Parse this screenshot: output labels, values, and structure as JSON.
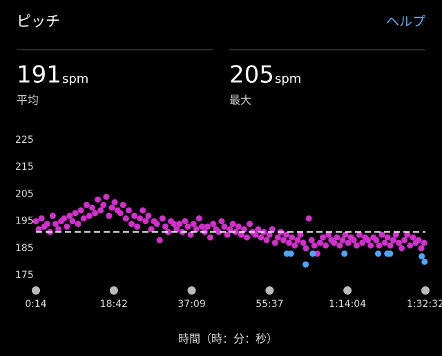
{
  "header": {
    "title": "ピッチ",
    "help": "ヘルプ"
  },
  "stats": [
    {
      "value": 191,
      "unit": "spm",
      "label": "平均"
    },
    {
      "value": 205,
      "unit": "spm",
      "label": "最大"
    }
  ],
  "chart_data": {
    "type": "scatter",
    "x_label": "時間（時：分：秒）",
    "xlim": [
      14,
      5552
    ],
    "xticks": [
      {
        "value": 14,
        "label": "0:14"
      },
      {
        "value": 1122,
        "label": "18:42"
      },
      {
        "value": 2229,
        "label": "37:09"
      },
      {
        "value": 3337,
        "label": "55:37"
      },
      {
        "value": 4444,
        "label": "1:14:04"
      },
      {
        "value": 5552,
        "label": "1:32:32"
      }
    ],
    "ylim": [
      175,
      225
    ],
    "yticks": [
      175,
      185,
      195,
      205,
      215,
      225
    ],
    "series": [
      {
        "color": "#d22fcc",
        "x": [
          14,
          54,
          94,
          134,
          174,
          214,
          254,
          294,
          334,
          374,
          414,
          454,
          494,
          534,
          574,
          614,
          654,
          694,
          734,
          774,
          814,
          854,
          894,
          934,
          974,
          1014,
          1054,
          1094,
          1134,
          1174,
          1214,
          1254,
          1294,
          1334,
          1374,
          1414,
          1454,
          1494,
          1534,
          1574,
          1614,
          1654,
          1694,
          1734,
          1774,
          1814,
          1854,
          1894,
          1934,
          1974,
          2014,
          2054,
          2094,
          2134,
          2174,
          2214,
          2254,
          2294,
          2334,
          2374,
          2414,
          2454,
          2494,
          2534,
          2574,
          2614,
          2654,
          2694,
          2734,
          2774,
          2814,
          2854,
          2894,
          2934,
          2974,
          3014,
          3054,
          3094,
          3134,
          3174,
          3214,
          3254,
          3294,
          3334,
          3374,
          3414,
          3454,
          3494,
          3534,
          3574,
          3614,
          3654,
          3694,
          3734,
          3774,
          3814,
          3854,
          3894,
          3934,
          3974,
          4014,
          4054,
          4094,
          4134,
          4174,
          4214,
          4254,
          4294,
          4334,
          4374,
          4414,
          4454,
          4494,
          4534,
          4574,
          4614,
          4654,
          4694,
          4734,
          4774,
          4814,
          4854,
          4894,
          4934,
          4974,
          5014,
          5054,
          5094,
          5134,
          5174,
          5214,
          5254,
          5294,
          5334,
          5374,
          5414,
          5454,
          5494,
          5534
        ],
        "values": [
          195,
          192,
          196,
          193,
          194,
          191,
          197,
          194,
          192,
          195,
          196,
          193,
          197,
          195,
          198,
          194,
          199,
          196,
          201,
          197,
          200,
          198,
          203,
          199,
          201,
          204,
          197,
          200,
          202,
          199,
          198,
          201,
          196,
          199,
          194,
          197,
          193,
          196,
          199,
          195,
          197,
          192,
          195,
          194,
          188,
          196,
          193,
          191,
          195,
          194,
          192,
          194,
          191,
          195,
          193,
          190,
          194,
          192,
          196,
          193,
          191,
          193,
          189,
          194,
          192,
          191,
          195,
          193,
          190,
          192,
          194,
          191,
          193,
          190,
          192,
          189,
          194,
          191,
          190,
          192,
          189,
          191,
          188,
          190,
          192,
          187,
          189,
          191,
          188,
          190,
          187,
          189,
          186,
          188,
          190,
          187,
          185,
          196,
          188,
          186,
          183,
          187,
          189,
          186,
          190,
          188,
          187,
          189,
          186,
          188,
          190,
          187,
          189,
          188,
          186,
          190,
          187,
          189,
          188,
          186,
          189,
          188,
          186,
          190,
          187,
          189,
          186,
          188,
          190,
          187,
          185,
          188,
          190,
          186,
          189,
          187,
          188,
          185,
          187
        ]
      },
      {
        "color": "#4da6ff",
        "x": [
          3580,
          3640,
          3850,
          3950,
          4400,
          4880,
          5010,
          5050,
          5500,
          5540
        ],
        "values": [
          183,
          183,
          179,
          183,
          183,
          183,
          183,
          183,
          182,
          180
        ]
      }
    ]
  }
}
